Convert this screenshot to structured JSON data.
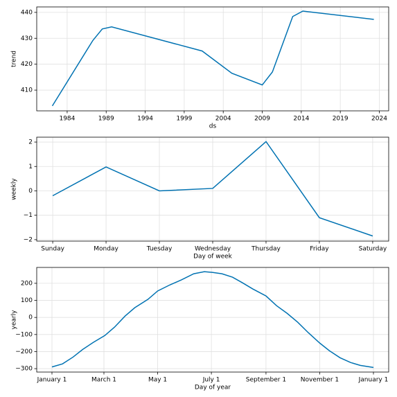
{
  "chart_data": [
    {
      "type": "line",
      "ylabel": "trend",
      "xlabel": "ds",
      "x": [
        1982.1,
        1987.3,
        1988.5,
        1989.7,
        2001.3,
        2005.1,
        2009.0,
        2010.3,
        2012.9,
        2014.2,
        2023.3
      ],
      "values": [
        403.9,
        429.2,
        433.6,
        434.4,
        425.1,
        416.5,
        412.0,
        417.0,
        438.4,
        440.5,
        437.3
      ],
      "color": "#0072B2",
      "grid": true,
      "xlim": [
        1980.1,
        2025.2
      ],
      "xticks": [
        1984,
        1989,
        1994,
        1999,
        2004,
        2009,
        2014,
        2019,
        2024
      ],
      "ylim": [
        402,
        442.1
      ],
      "yticks": [
        410,
        420,
        430,
        440
      ]
    },
    {
      "type": "line",
      "ylabel": "weekly",
      "xlabel": "Day of week",
      "categories": [
        "Sunday",
        "Monday",
        "Tuesday",
        "Wednesday",
        "Thursday",
        "Friday",
        "Saturday"
      ],
      "values": [
        -0.2,
        0.98,
        0.0,
        0.1,
        2.02,
        -1.1,
        -1.85
      ],
      "color": "#0072B2",
      "grid": true,
      "ylim": [
        -2.06,
        2.2
      ],
      "yticks": [
        {
          "value": -2,
          "label": "−2"
        },
        {
          "value": -1,
          "label": "−1"
        },
        0,
        1,
        2
      ]
    },
    {
      "type": "line",
      "ylabel": "yearly",
      "xlabel": "Day of year",
      "x": [
        0,
        12,
        24,
        35,
        47,
        60,
        71,
        83,
        94,
        109,
        120,
        134,
        147,
        161,
        173,
        182,
        193,
        205,
        216,
        228,
        243,
        255,
        267,
        279,
        291,
        304,
        315,
        327,
        339,
        350,
        365
      ],
      "values": [
        -290,
        -272,
        -232,
        -187,
        -146,
        -106,
        -57,
        8,
        57,
        106,
        155,
        191,
        220,
        256,
        268,
        264,
        256,
        236,
        204,
        167,
        126,
        69,
        24,
        -28,
        -89,
        -150,
        -195,
        -236,
        -264,
        -281,
        -293
      ],
      "color": "#0072B2",
      "grid": true,
      "xlim": [
        -17.3,
        382.3
      ],
      "xticks": [
        {
          "value": 0,
          "label": "January 1"
        },
        {
          "value": 59,
          "label": "March 1"
        },
        {
          "value": 120,
          "label": "May 1"
        },
        {
          "value": 181,
          "label": "July 1"
        },
        {
          "value": 243,
          "label": "September 1"
        },
        {
          "value": 304,
          "label": "November 1"
        },
        {
          "value": 365,
          "label": "January 1"
        }
      ],
      "ylim": [
        -320,
        293
      ],
      "yticks": [
        {
          "value": -300,
          "label": "−300"
        },
        {
          "value": -200,
          "label": "−200"
        },
        {
          "value": -100,
          "label": "−100"
        },
        0,
        100,
        200
      ]
    }
  ]
}
